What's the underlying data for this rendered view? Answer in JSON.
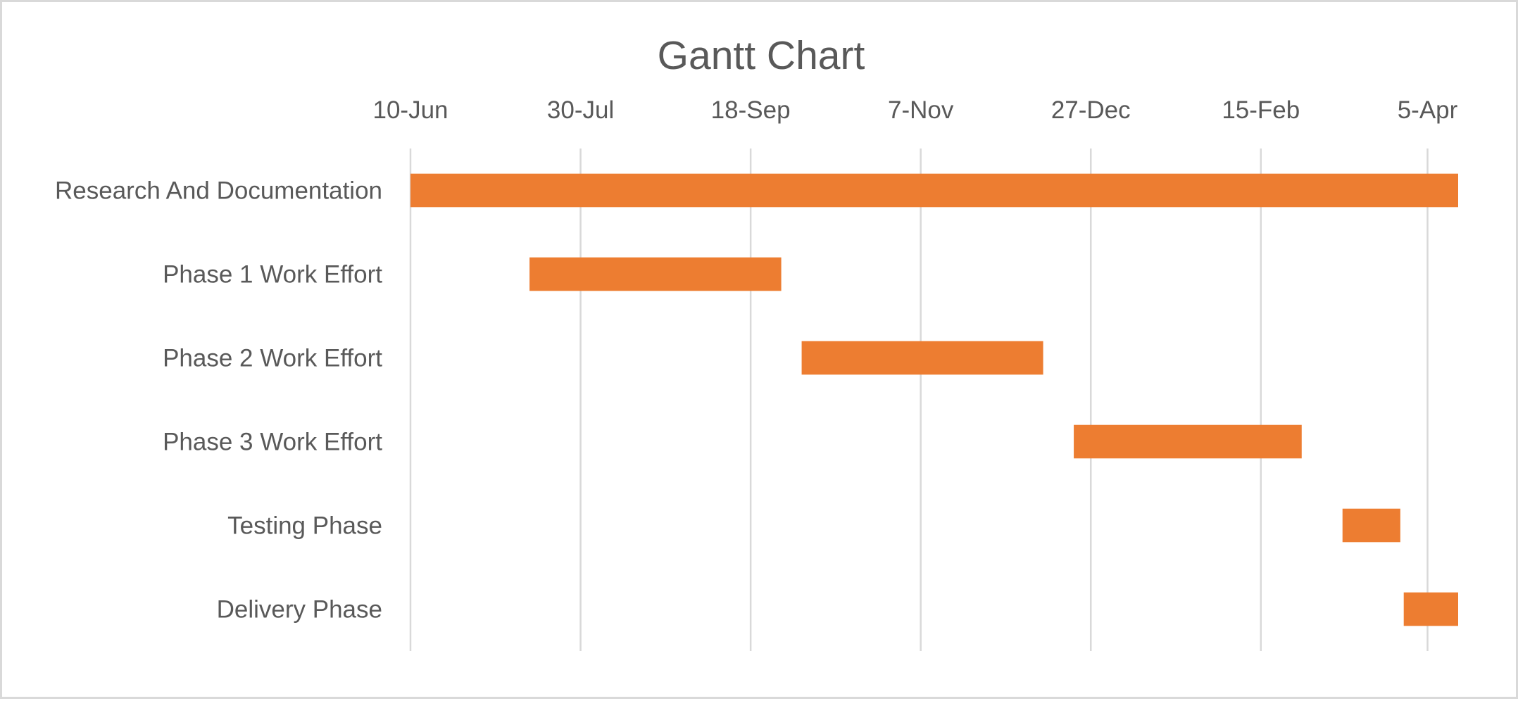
{
  "chart_data": {
    "type": "bar",
    "orientation": "horizontal",
    "subtype": "gantt",
    "title": "Gantt Chart",
    "xlabel": "",
    "ylabel": "",
    "x_axis_position": "top",
    "x_ticks": [
      "10-Jun",
      "30-Jul",
      "18-Sep",
      "7-Nov",
      "27-Dec",
      "15-Feb",
      "5-Apr"
    ],
    "xlim": [
      "10-Jun",
      "14-Apr"
    ],
    "grid": true,
    "legend": "none",
    "bar_color": "#ED7D31",
    "categories": [
      "Research And Documentation",
      "Phase 1 Work Effort",
      "Phase 2 Work Effort",
      "Phase 3 Work Effort",
      "Testing Phase",
      "Delivery Phase"
    ],
    "tasks": [
      {
        "name": "Research And Documentation",
        "start": "10-Jun",
        "end": "14-Apr"
      },
      {
        "name": "Phase 1 Work Effort",
        "start": "15-Jul",
        "end": "27-Sep"
      },
      {
        "name": "Phase 2 Work Effort",
        "start": "3-Oct",
        "end": "13-Dec"
      },
      {
        "name": "Phase 3 Work Effort",
        "start": "22-Dec",
        "end": "27-Feb"
      },
      {
        "name": "Testing Phase",
        "start": "11-Mar",
        "end": "28-Mar"
      },
      {
        "name": "Delivery Phase",
        "start": "29-Mar",
        "end": "14-Apr"
      }
    ]
  }
}
